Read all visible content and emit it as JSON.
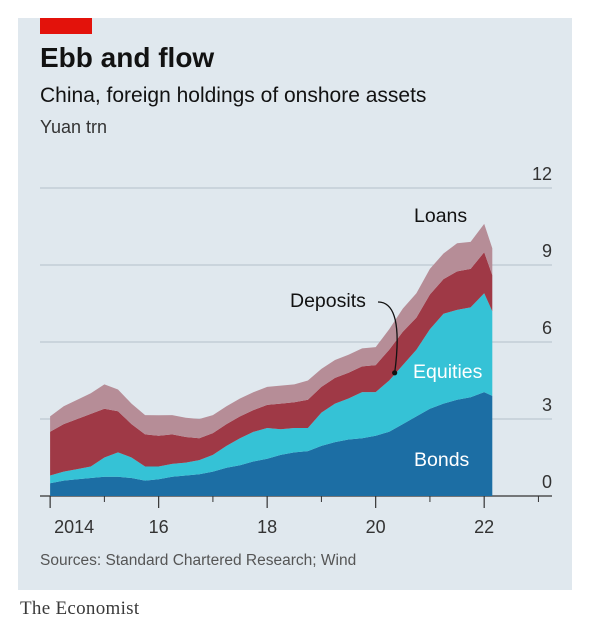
{
  "header": {
    "title": "Ebb and flow",
    "subtitle": "China, foreign holdings of onshore assets",
    "unit": "Yuan trn"
  },
  "colors": {
    "background": "#e0e8ee",
    "bonds": "#1c6ea4",
    "equities": "#35c2d6",
    "deposits": "#9f3946",
    "loans": "#b68d97",
    "accent": "#e3120b"
  },
  "footer": {
    "source": "Sources: Standard Chartered Research; Wind",
    "brand": "The Economist"
  },
  "chart_data": {
    "type": "area",
    "stacked": true,
    "y_axis_side": "right",
    "ylim": [
      0,
      12
    ],
    "yticks": [
      0,
      3,
      6,
      9,
      12
    ],
    "xlim": [
      2013.85,
      2023.25
    ],
    "xticks": [
      {
        "value": 2014,
        "label": "2014"
      },
      {
        "value": 2016,
        "label": "16"
      },
      {
        "value": 2018,
        "label": "18"
      },
      {
        "value": 2020,
        "label": "20"
      },
      {
        "value": 2022,
        "label": "22"
      }
    ],
    "x": [
      2014.0,
      2014.25,
      2014.5,
      2014.75,
      2015.0,
      2015.25,
      2015.5,
      2015.75,
      2016.0,
      2016.25,
      2016.5,
      2016.75,
      2017.0,
      2017.25,
      2017.5,
      2017.75,
      2018.0,
      2018.25,
      2018.5,
      2018.75,
      2019.0,
      2019.25,
      2019.5,
      2019.75,
      2020.0,
      2020.25,
      2020.5,
      2020.75,
      2021.0,
      2021.25,
      2021.5,
      2021.75,
      2022.0,
      2022.15
    ],
    "series": [
      {
        "name": "Bonds",
        "values": [
          0.5,
          0.6,
          0.65,
          0.7,
          0.75,
          0.75,
          0.7,
          0.6,
          0.65,
          0.75,
          0.8,
          0.85,
          0.95,
          1.1,
          1.2,
          1.35,
          1.45,
          1.6,
          1.7,
          1.75,
          1.95,
          2.1,
          2.2,
          2.25,
          2.35,
          2.5,
          2.8,
          3.1,
          3.4,
          3.6,
          3.75,
          3.85,
          4.05,
          3.9
        ]
      },
      {
        "name": "Equities",
        "values": [
          0.3,
          0.35,
          0.4,
          0.45,
          0.75,
          0.95,
          0.8,
          0.55,
          0.5,
          0.5,
          0.5,
          0.55,
          0.65,
          0.85,
          1.05,
          1.15,
          1.2,
          1.0,
          0.95,
          0.9,
          1.3,
          1.5,
          1.6,
          1.8,
          1.7,
          2.0,
          2.3,
          2.6,
          3.1,
          3.5,
          3.5,
          3.5,
          3.85,
          3.3
        ]
      },
      {
        "name": "Deposits",
        "values": [
          1.7,
          1.85,
          1.95,
          2.05,
          1.9,
          1.6,
          1.3,
          1.25,
          1.2,
          1.15,
          1.0,
          0.85,
          0.85,
          0.85,
          0.85,
          0.85,
          0.9,
          1.0,
          1.0,
          1.1,
          1.0,
          1.0,
          1.0,
          1.0,
          1.05,
          1.2,
          1.3,
          1.25,
          1.35,
          1.35,
          1.5,
          1.5,
          1.6,
          1.4
        ]
      },
      {
        "name": "Loans",
        "values": [
          0.6,
          0.7,
          0.75,
          0.8,
          0.95,
          0.85,
          0.8,
          0.75,
          0.8,
          0.75,
          0.75,
          0.75,
          0.7,
          0.7,
          0.7,
          0.7,
          0.7,
          0.7,
          0.7,
          0.75,
          0.7,
          0.7,
          0.7,
          0.7,
          0.7,
          0.8,
          0.9,
          0.95,
          1.0,
          1.0,
          1.1,
          1.05,
          1.1,
          1.05
        ]
      }
    ],
    "annotations": [
      {
        "text": "Loans",
        "target": "Loans"
      },
      {
        "text": "Deposits",
        "target": "Deposits",
        "arrow": true
      },
      {
        "text": "Equities",
        "target": "Equities"
      },
      {
        "text": "Bonds",
        "target": "Bonds"
      }
    ]
  }
}
